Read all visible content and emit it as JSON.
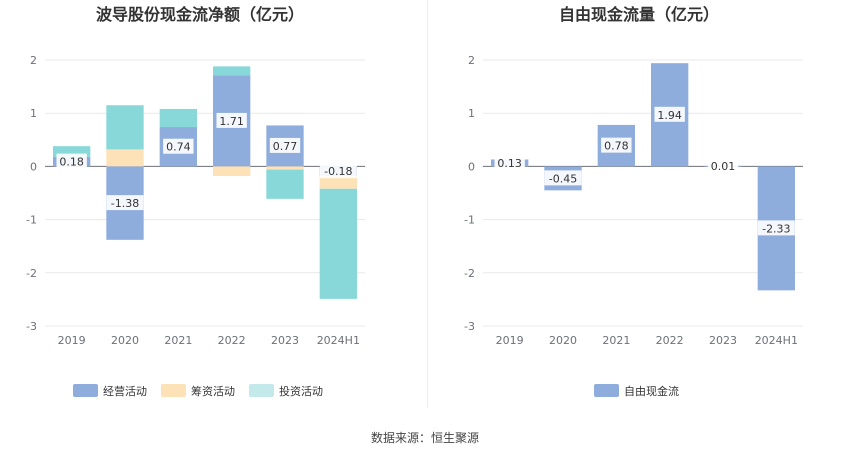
{
  "source_label": "数据来源：恒生聚源",
  "chart_data": [
    {
      "type": "bar",
      "stacked": true,
      "title": "波导股份现金流净额（亿元）",
      "categories": [
        "2019",
        "2020",
        "2021",
        "2022",
        "2023",
        "2024H1"
      ],
      "ylim": [
        -3,
        2
      ],
      "yticks": [
        2,
        1,
        0,
        -1,
        -2,
        -3
      ],
      "grid": true,
      "legend_position": "bottom",
      "series": [
        {
          "name": "经营活动",
          "color": "#8eacdc",
          "values": [
            0.18,
            -1.38,
            0.74,
            1.71,
            0.77,
            -0.18
          ]
        },
        {
          "name": "筹资活动",
          "color": "#fde2b8",
          "values": [
            0.0,
            0.32,
            0.0,
            -0.18,
            -0.06,
            -0.24
          ]
        },
        {
          "name": "投资活动",
          "color": "#88d8da",
          "values": [
            0.2,
            0.83,
            0.34,
            0.17,
            -0.55,
            -2.07
          ]
        }
      ],
      "data_labels": [
        "0.18",
        "-1.38",
        "0.74",
        "1.71",
        "0.77",
        "-0.18"
      ],
      "legend_swatch_colors": [
        "#8eacdc",
        "#fde2b8",
        "#c4e9ea"
      ]
    },
    {
      "type": "bar",
      "title": "自由现金流量（亿元）",
      "categories": [
        "2019",
        "2020",
        "2021",
        "2022",
        "2023",
        "2024H1"
      ],
      "ylim": [
        -3,
        2
      ],
      "yticks": [
        2,
        1,
        0,
        -1,
        -2,
        -3
      ],
      "grid": true,
      "legend_position": "bottom",
      "series": [
        {
          "name": "自由现金流",
          "color": "#8eacdc",
          "values": [
            0.13,
            -0.45,
            0.78,
            1.94,
            0.01,
            -2.33
          ]
        }
      ],
      "data_labels": [
        "0.13",
        "-0.45",
        "0.78",
        "1.94",
        "0.01",
        "-2.33"
      ],
      "legend_swatch_colors": [
        "#8eacdc"
      ]
    }
  ]
}
